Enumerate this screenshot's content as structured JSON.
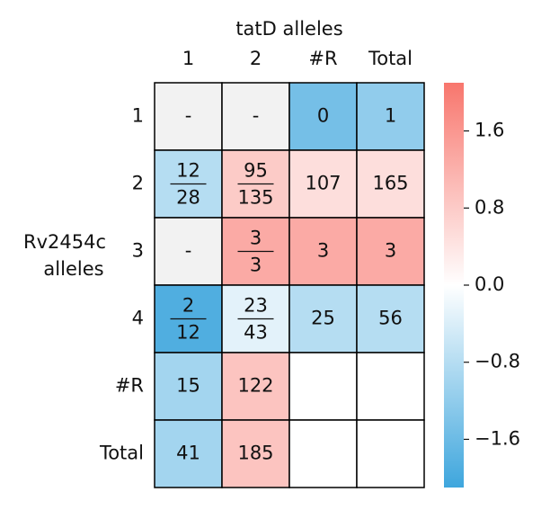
{
  "chart_data": {
    "type": "heatmap",
    "xlabel": "tatD alleles",
    "ylabel": [
      "Rv2454c",
      "alleles"
    ],
    "x_categories": [
      "1",
      "2",
      "#R",
      "Total"
    ],
    "y_categories": [
      "1",
      "2",
      "3",
      "4",
      "#R",
      "Total"
    ],
    "values": [
      [
        null,
        null,
        -1.5,
        -1.2
      ],
      [
        -0.8,
        0.8,
        0.5,
        0.5
      ],
      [
        null,
        1.3,
        1.3,
        1.3
      ],
      [
        -1.9,
        -0.3,
        -0.8,
        -0.8
      ],
      [
        -1.0,
        0.9,
        null,
        null
      ],
      [
        -1.0,
        0.9,
        null,
        null
      ]
    ],
    "cell_labels": [
      [
        "-",
        "-",
        "0",
        "1"
      ],
      [
        {
          "numerator": "12",
          "denominator": "28"
        },
        {
          "numerator": "95",
          "denominator": "135"
        },
        "107",
        "165"
      ],
      [
        "-",
        {
          "numerator": "3",
          "denominator": "3"
        },
        "3",
        "3"
      ],
      [
        {
          "numerator": "2",
          "denominator": "12"
        },
        {
          "numerator": "23",
          "denominator": "43"
        },
        "25",
        "56"
      ],
      [
        "15",
        "122",
        null,
        null
      ],
      [
        "41",
        "185",
        null,
        null
      ]
    ],
    "colormap": [
      "#3ea6dd",
      "#ffffff",
      "#f8766d"
    ],
    "missing_color": "#f2f2f2",
    "clim": [
      -2.1,
      2.1
    ],
    "cticks": [
      {
        "value": 1.6,
        "label": "1.6"
      },
      {
        "value": 0.8,
        "label": "0.8"
      },
      {
        "value": 0.0,
        "label": "0.0"
      },
      {
        "value": -0.8,
        "label": "−0.8"
      },
      {
        "value": -1.6,
        "label": "−1.6"
      }
    ]
  }
}
